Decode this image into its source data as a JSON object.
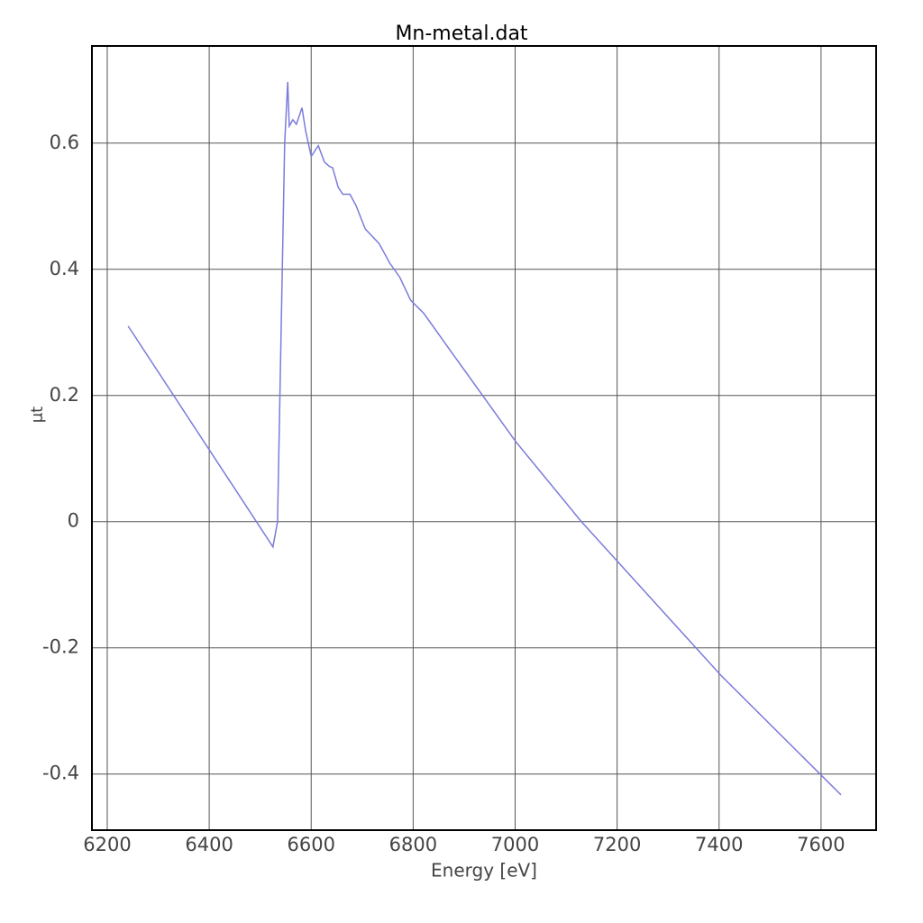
{
  "chart_data": {
    "type": "line",
    "title": "Mn-metal.dat",
    "x_label": "Energy [eV]",
    "y_label": "μt",
    "x": [
      6241,
      6525,
      6534,
      6548,
      6554,
      6557,
      6564,
      6571,
      6582,
      6589,
      6600,
      6614,
      6626,
      6636,
      6642,
      6653,
      6662,
      6676,
      6688,
      6706,
      6733,
      6754,
      6774,
      6795,
      6821,
      6874,
      7001,
      7130,
      7404,
      7639
    ],
    "values": [
      0.31,
      -0.04,
      0.0,
      0.6,
      0.697,
      0.627,
      0.637,
      0.63,
      0.656,
      0.62,
      0.579,
      0.596,
      0.57,
      0.563,
      0.561,
      0.53,
      0.519,
      0.519,
      0.501,
      0.464,
      0.441,
      0.41,
      0.387,
      0.351,
      0.33,
      0.27,
      0.127,
      0.0,
      -0.244,
      -0.433
    ],
    "color": "#7b7bdc",
    "xlim": [
      6170,
      7708
    ],
    "ylim": [
      -0.489,
      0.754
    ],
    "xticks": [
      6200,
      6400,
      6600,
      6800,
      7000,
      7200,
      7400,
      7600
    ],
    "yticks": [
      -0.4,
      -0.2,
      0,
      0.2,
      0.4,
      0.6
    ],
    "grid": true
  }
}
